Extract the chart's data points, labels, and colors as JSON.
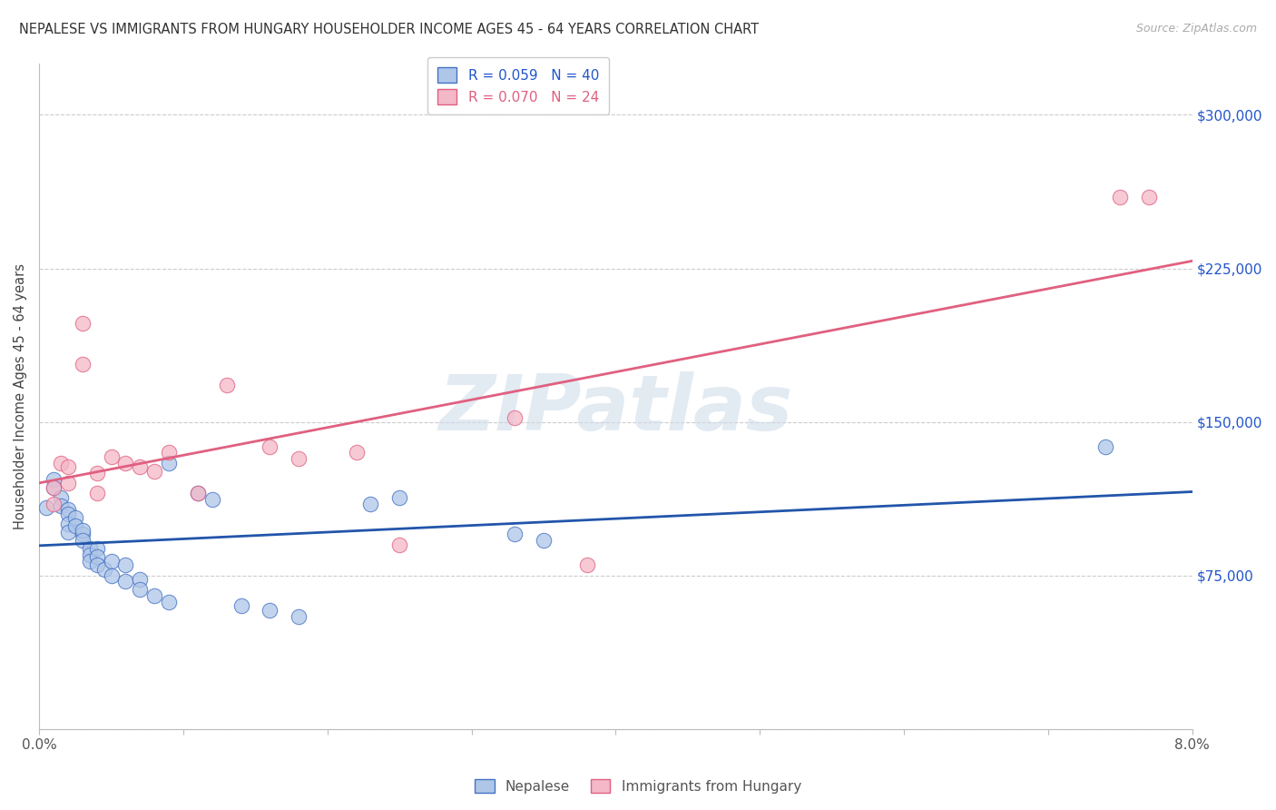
{
  "title": "NEPALESE VS IMMIGRANTS FROM HUNGARY HOUSEHOLDER INCOME AGES 45 - 64 YEARS CORRELATION CHART",
  "source": "Source: ZipAtlas.com",
  "ylabel": "Householder Income Ages 45 - 64 years",
  "x_min": 0.0,
  "x_max": 0.08,
  "y_min": 0,
  "y_max": 325000,
  "x_ticks": [
    0.0,
    0.01,
    0.02,
    0.03,
    0.04,
    0.05,
    0.06,
    0.07,
    0.08
  ],
  "y_ticks": [
    0,
    75000,
    150000,
    225000,
    300000
  ],
  "y_tick_labels": [
    "",
    "$75,000",
    "$150,000",
    "$225,000",
    "$300,000"
  ],
  "nepalese_color": "#aec6e8",
  "nepalese_edge_color": "#4472c4",
  "nepalese_line_color": "#2255aa",
  "hungary_color": "#f4b8c8",
  "hungary_edge_color": "#e06080",
  "hungary_line_color": "#e06080",
  "watermark": "ZIPatlas",
  "nepalese_x": [
    0.0005,
    0.001,
    0.001,
    0.0015,
    0.0015,
    0.002,
    0.002,
    0.002,
    0.002,
    0.0025,
    0.0025,
    0.003,
    0.003,
    0.003,
    0.0035,
    0.0035,
    0.0035,
    0.004,
    0.004,
    0.004,
    0.0045,
    0.005,
    0.005,
    0.006,
    0.006,
    0.007,
    0.007,
    0.008,
    0.009,
    0.009,
    0.011,
    0.012,
    0.014,
    0.016,
    0.018,
    0.023,
    0.025,
    0.033,
    0.035,
    0.074
  ],
  "nepalese_y": [
    108000,
    122000,
    118000,
    113000,
    109000,
    107000,
    105000,
    100000,
    96000,
    103000,
    99000,
    95000,
    97000,
    92000,
    88000,
    85000,
    82000,
    88000,
    84000,
    80000,
    78000,
    82000,
    75000,
    80000,
    72000,
    73000,
    68000,
    65000,
    130000,
    62000,
    115000,
    112000,
    60000,
    58000,
    55000,
    110000,
    113000,
    95000,
    92000,
    138000
  ],
  "hungary_x": [
    0.001,
    0.001,
    0.0015,
    0.002,
    0.002,
    0.003,
    0.003,
    0.004,
    0.004,
    0.005,
    0.006,
    0.007,
    0.008,
    0.009,
    0.011,
    0.013,
    0.016,
    0.018,
    0.022,
    0.025,
    0.033,
    0.038,
    0.075,
    0.077
  ],
  "hungary_y": [
    118000,
    110000,
    130000,
    128000,
    120000,
    198000,
    178000,
    125000,
    115000,
    133000,
    130000,
    128000,
    126000,
    135000,
    115000,
    168000,
    138000,
    132000,
    135000,
    90000,
    152000,
    80000,
    260000,
    260000
  ]
}
